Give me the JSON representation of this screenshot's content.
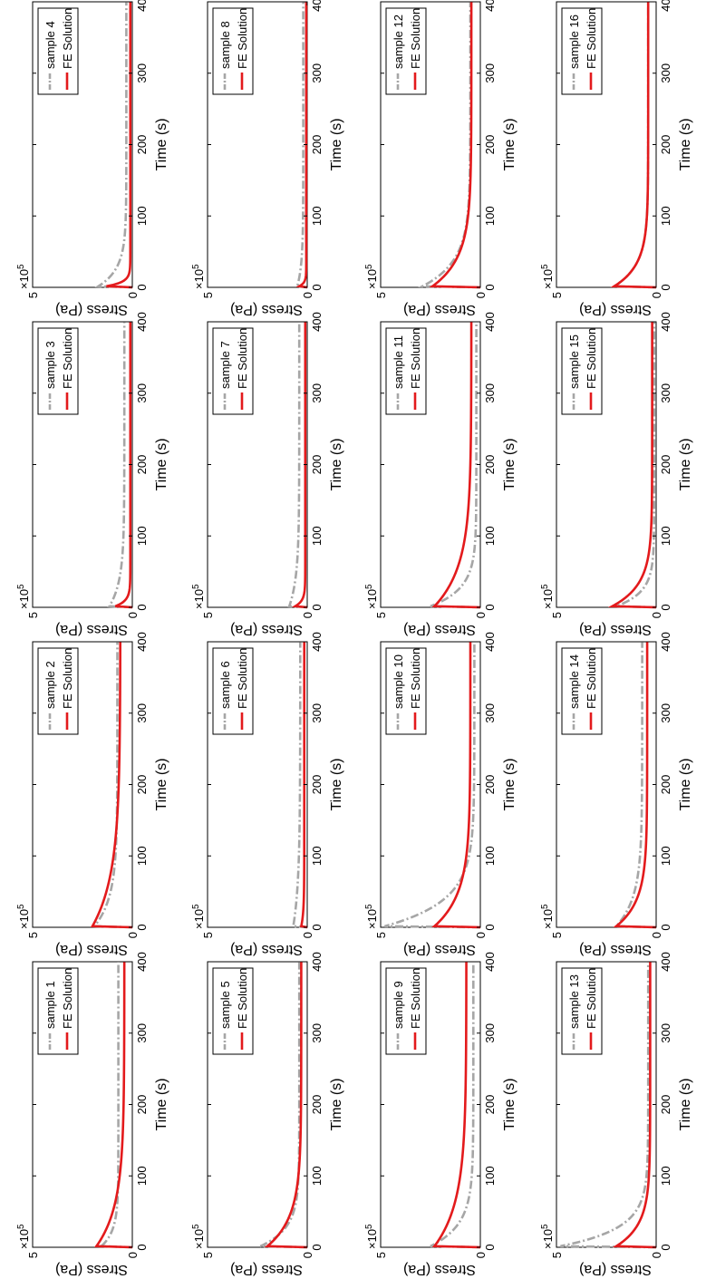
{
  "chart_data": {
    "type": "line",
    "xlabel": "Time (s)",
    "ylabel": "Stress (Pa)",
    "y_multiplier": "×10",
    "y_multiplier_exp": "5",
    "xlim": [
      0,
      400
    ],
    "ylim": [
      0,
      500000
    ],
    "xticks": [
      "0",
      "100",
      "200",
      "300",
      "400"
    ],
    "yticks": [
      "0",
      "5"
    ],
    "grid": false,
    "legend_position": "top-right",
    "fe_series_name": "FE Solution",
    "colors": {
      "sample": "#a6a6a6",
      "fe": "#e31a1c",
      "axes": "#000000"
    },
    "panels": [
      {
        "sample": "sample 1",
        "sample_curve": {
          "peak": 155000,
          "plateau": 70000,
          "tau": 22
        },
        "fe_curve": {
          "peak": 180000,
          "plateau": 40000,
          "tau": 55
        }
      },
      {
        "sample": "sample 2",
        "sample_curve": {
          "peak": 190000,
          "plateau": 75000,
          "tau": 40
        },
        "fe_curve": {
          "peak": 200000,
          "plateau": 60000,
          "tau": 70
        }
      },
      {
        "sample": "sample 3",
        "sample_curve": {
          "peak": 115000,
          "plateau": 40000,
          "tau": 35
        },
        "fe_curve": {
          "peak": 85000,
          "plateau": 10000,
          "tau": 8
        }
      },
      {
        "sample": "sample 4",
        "sample_curve": {
          "peak": 170000,
          "plateau": 30000,
          "tau": 25
        },
        "fe_curve": {
          "peak": 130000,
          "plateau": 10000,
          "tau": 6
        }
      },
      {
        "sample": "sample 5",
        "sample_curve": {
          "peak": 235000,
          "plateau": 40000,
          "tau": 25
        },
        "fe_curve": {
          "peak": 200000,
          "plateau": 30000,
          "tau": 40
        }
      },
      {
        "sample": "sample 6",
        "sample_curve": {
          "peak": 70000,
          "plateau": 35000,
          "tau": 60
        },
        "fe_curve": {
          "peak": 30000,
          "plateau": 15000,
          "tau": 20
        }
      },
      {
        "sample": "sample 7",
        "sample_curve": {
          "peak": 90000,
          "plateau": 40000,
          "tau": 40
        },
        "fe_curve": {
          "peak": 60000,
          "plateau": 10000,
          "tau": 8
        }
      },
      {
        "sample": "sample 8",
        "sample_curve": {
          "peak": 50000,
          "plateau": 20000,
          "tau": 30
        },
        "fe_curve": {
          "peak": 40000,
          "plateau": 5000,
          "tau": 5
        }
      },
      {
        "sample": "sample 9",
        "sample_curve": {
          "peak": 250000,
          "plateau": 35000,
          "tau": 30
        },
        "fe_curve": {
          "peak": 230000,
          "plateau": 70000,
          "tau": 60
        }
      },
      {
        "sample": "sample 10",
        "sample_curve": {
          "peak": 480000,
          "plateau": 30000,
          "tau": 35
        },
        "fe_curve": {
          "peak": 230000,
          "plateau": 50000,
          "tau": 45
        }
      },
      {
        "sample": "sample 11",
        "sample_curve": {
          "peak": 250000,
          "plateau": 20000,
          "tau": 25
        },
        "fe_curve": {
          "peak": 230000,
          "plateau": 45000,
          "tau": 55
        }
      },
      {
        "sample": "sample 12",
        "sample_curve": {
          "peak": 290000,
          "plateau": 50000,
          "tau": 35
        },
        "fe_curve": {
          "peak": 240000,
          "plateau": 45000,
          "tau": 40
        }
      },
      {
        "sample": "sample 13",
        "sample_curve": {
          "peak": 480000,
          "plateau": 40000,
          "tau": 25
        },
        "fe_curve": {
          "peak": 200000,
          "plateau": 30000,
          "tau": 30
        }
      },
      {
        "sample": "sample 14",
        "sample_curve": {
          "peak": 200000,
          "plateau": 70000,
          "tau": 40
        },
        "fe_curve": {
          "peak": 200000,
          "plateau": 45000,
          "tau": 35
        }
      },
      {
        "sample": "sample 15",
        "sample_curve": {
          "peak": 200000,
          "plateau": 10000,
          "tau": 20
        },
        "fe_curve": {
          "peak": 220000,
          "plateau": 20000,
          "tau": 30
        }
      },
      {
        "sample": "sample 16",
        "sample_curve": {
          "peak": 210000,
          "plateau": 40000,
          "tau": 30
        },
        "fe_curve": {
          "peak": 210000,
          "plateau": 40000,
          "tau": 30
        }
      }
    ]
  }
}
